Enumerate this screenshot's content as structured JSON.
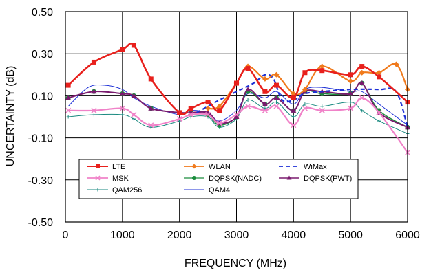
{
  "chart_data": {
    "type": "line",
    "title": "",
    "xlabel": "FREQUENCY (MHz)",
    "ylabel": "UNCERTAINTY (dB)",
    "xlim": [
      0,
      6000
    ],
    "ylim": [
      -0.5,
      0.5
    ],
    "xticks": [
      0,
      1000,
      2000,
      3000,
      4000,
      5000,
      6000
    ],
    "xtick_labels": [
      "0",
      "1000",
      "2000",
      "3000",
      "4000",
      "5000",
      "6000"
    ],
    "yticks": [
      -0.5,
      -0.3,
      -0.1,
      0.1,
      0.3,
      0.5
    ],
    "ytick_labels": [
      "-0.50",
      "-0.30",
      "-0.10",
      "0.10",
      "0.30",
      "0.50"
    ],
    "grid": "vertical and horizontal at ticks",
    "legend_position": "lower-left inside plot",
    "series": [
      {
        "name": "LTE",
        "color": "#e8201c",
        "marker": "square",
        "dash": "solid",
        "width": 2.6,
        "x": [
          50,
          500,
          1000,
          1200,
          1500,
          2000,
          2200,
          2500,
          2700,
          3000,
          3200,
          3500,
          3700,
          4000,
          4200,
          4500,
          5000,
          5200,
          5500,
          6000
        ],
        "y": [
          0.15,
          0.26,
          0.32,
          0.34,
          0.18,
          0.02,
          0.04,
          0.07,
          0.03,
          0.16,
          0.23,
          0.12,
          0.15,
          0.09,
          0.21,
          0.22,
          0.2,
          0.24,
          0.19,
          0.07
        ]
      },
      {
        "name": "WLAN",
        "color": "#f07a1c",
        "marker": "diamond",
        "dash": "solid",
        "width": 2.2,
        "x": [
          2500,
          2700,
          3000,
          3200,
          3500,
          3700,
          4000,
          4200,
          4500,
          5000,
          5200,
          5500,
          5800,
          6000
        ],
        "y": [
          0.04,
          0.05,
          0.16,
          0.24,
          0.18,
          0.2,
          0.11,
          0.13,
          0.24,
          0.17,
          0.21,
          0.21,
          0.25,
          0.13
        ]
      },
      {
        "name": "WiMax",
        "color": "#1c2fd6",
        "marker": "none",
        "dash": "6,4",
        "width": 2.2,
        "x": [
          2300,
          2500,
          2700,
          3000,
          3300,
          3500,
          3650,
          3800,
          4000,
          4200,
          4500,
          5000,
          5500,
          5800,
          6000
        ],
        "y": [
          0.02,
          0.05,
          0.08,
          0.12,
          0.16,
          0.2,
          0.18,
          0.08,
          0.08,
          0.11,
          0.12,
          0.13,
          0.13,
          0.12,
          -0.05
        ]
      },
      {
        "name": "MSK",
        "color": "#f082c8",
        "marker": "x",
        "dash": "solid",
        "width": 2.2,
        "x": [
          50,
          500,
          1000,
          1200,
          1500,
          2000,
          2200,
          2500,
          2700,
          3000,
          3200,
          3500,
          3700,
          4000,
          4200,
          4500,
          5000,
          5200,
          5500,
          6000
        ],
        "y": [
          0.03,
          0.03,
          0.04,
          0.01,
          -0.04,
          -0.01,
          0.01,
          0.01,
          -0.03,
          0.01,
          0.05,
          0.03,
          0.05,
          -0.04,
          0.04,
          0.03,
          0.04,
          0.09,
          0.02,
          -0.17
        ]
      },
      {
        "name": "DQPSK(NADC)",
        "color": "#1a8c3c",
        "marker": "circle",
        "dash": "solid",
        "width": 1.5,
        "x": [
          50,
          500,
          1000,
          1200,
          1500,
          2000,
          2200,
          2500,
          2700,
          3000,
          3200,
          3500,
          3700,
          4000,
          4200,
          4500,
          5000,
          5200,
          5500,
          6000
        ],
        "y": [
          0.09,
          0.12,
          0.11,
          0.1,
          0.04,
          0.02,
          0.02,
          0.01,
          -0.04,
          0.0,
          0.12,
          0.06,
          0.09,
          0.03,
          0.12,
          0.11,
          0.11,
          0.16,
          0.03,
          -0.05
        ]
      },
      {
        "name": "DQPSK(PWT)",
        "color": "#7a1a6e",
        "marker": "triangle",
        "dash": "solid",
        "width": 2.0,
        "x": [
          50,
          500,
          1000,
          1200,
          1500,
          2000,
          2200,
          2500,
          2700,
          3000,
          3200,
          3500,
          3700,
          4000,
          4200,
          4500,
          5000,
          5200,
          5500,
          6000
        ],
        "y": [
          0.09,
          0.12,
          0.11,
          0.1,
          0.04,
          0.02,
          0.02,
          0.02,
          -0.03,
          0.0,
          0.13,
          0.06,
          0.09,
          0.03,
          0.12,
          0.12,
          0.11,
          0.16,
          0.02,
          -0.05
        ]
      },
      {
        "name": "QAM256",
        "color": "#1a8a80",
        "marker": "plus",
        "dash": "solid",
        "width": 1.0,
        "x": [
          50,
          500,
          1000,
          1200,
          1500,
          2000,
          2200,
          2500,
          2700,
          3000,
          3200,
          3500,
          3700,
          4000,
          4200,
          4500,
          5000,
          5200,
          5500,
          6000
        ],
        "y": [
          0.0,
          0.01,
          0.01,
          -0.01,
          -0.05,
          -0.02,
          0.0,
          0.0,
          -0.05,
          -0.01,
          0.08,
          0.04,
          0.07,
          0.0,
          0.06,
          0.05,
          0.07,
          0.03,
          -0.02,
          -0.08
        ]
      },
      {
        "name": "QAM4",
        "color": "#1c2fd6",
        "marker": "none",
        "dash": "solid",
        "width": 1.0,
        "x": [
          50,
          400,
          700,
          1000,
          1200,
          1500,
          2000,
          2200,
          2500,
          2700,
          3000,
          3200,
          3500,
          3700,
          4000,
          4200,
          4500,
          5000,
          5200,
          5500,
          6000
        ],
        "y": [
          0.05,
          0.14,
          0.15,
          0.13,
          0.09,
          0.05,
          0.01,
          0.03,
          0.02,
          -0.02,
          0.03,
          0.11,
          0.09,
          0.12,
          0.06,
          0.13,
          0.14,
          0.12,
          0.12,
          0.06,
          -0.04
        ]
      }
    ]
  }
}
